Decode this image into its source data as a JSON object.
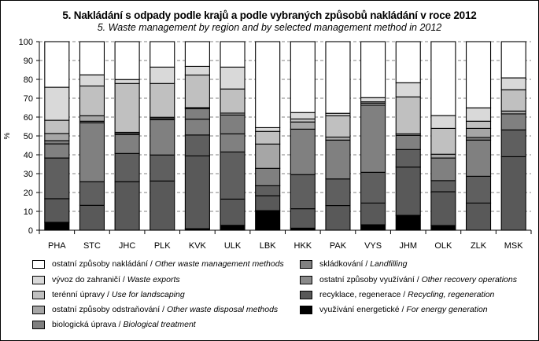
{
  "chart_data": {
    "type": "bar",
    "stacked": true,
    "title": "5. Nakládání  s odpady podle krajů a podle vybraných  způsobů nakládání v roce 2012",
    "subtitle": "5. Waste management  by region and by selected management  method in 2012",
    "xlabel": "",
    "ylabel": "%",
    "ylim": [
      0,
      100
    ],
    "yticks": [
      "0",
      "10",
      "20",
      "30",
      "40",
      "50",
      "60",
      "70",
      "80",
      "90",
      "100"
    ],
    "grid": "horizontal-dashed",
    "legend_position": "bottom",
    "categories": [
      "PHA",
      "STC",
      "JHC",
      "PLK",
      "KVK",
      "ULK",
      "LBK",
      "HKK",
      "PAK",
      "VYS",
      "JHM",
      "OLK",
      "ZLK",
      "MSK"
    ],
    "series": [
      {
        "key": "energy",
        "name_cs": "využívání energetické",
        "name_en": "For energy generation",
        "color": "#000000",
        "values": [
          4.2,
          0,
          0,
          0,
          0.8,
          2.6,
          10.4,
          1.1,
          0,
          2.9,
          7.9,
          2.5,
          0,
          0
        ]
      },
      {
        "key": "recycling",
        "name_cs": "recyklace, regenerace",
        "name_en": "Recycling, regeneration",
        "color": "#595959",
        "values": [
          12.5,
          13.2,
          25.7,
          26.1,
          38.6,
          13.9,
          7.9,
          10.3,
          13.1,
          11.5,
          25.6,
          17.9,
          14.4,
          39.0
        ]
      },
      {
        "key": "other_recovery",
        "name_cs": "ostatní způsoby využívání",
        "name_en": "Other recovery operations",
        "color": "#5f5f5f",
        "values": [
          21.6,
          12.5,
          15.0,
          13.8,
          11.1,
          25.0,
          5.3,
          18.1,
          14.1,
          16.3,
          9.3,
          5.9,
          14.2,
          14.2
        ]
      },
      {
        "key": "landfilling",
        "name_cs": "skládkování",
        "name_en": "Landfilling",
        "color": "#808080",
        "values": [
          7.5,
          31.3,
          10.1,
          18.7,
          8.4,
          9.6,
          9.2,
          24.1,
          20.6,
          35.6,
          7.5,
          12.0,
          19.2,
          8.5
        ]
      },
      {
        "key": "biological",
        "name_cs": "biologická úprava",
        "name_en": "Biological treatment",
        "color": "#7f7f7f",
        "values": [
          1.7,
          0.8,
          0.4,
          0.6,
          5.6,
          10.0,
          0,
          0,
          0,
          0,
          0,
          0,
          1.4,
          0
        ]
      },
      {
        "key": "other_disposal",
        "name_cs": "ostatní způsoby odstraňování",
        "name_en": "Other waste disposal methods",
        "color": "#a6a6a6",
        "values": [
          3.8,
          2.9,
          0.7,
          0.7,
          0.5,
          1.0,
          12.9,
          3.8,
          1.6,
          1.1,
          0.8,
          2.0,
          4.8,
          1.5
        ]
      },
      {
        "key": "landscaping",
        "name_cs": "terénní úpravy",
        "name_en": "Use for landscaping",
        "color": "#c0c0c0",
        "values": [
          7.0,
          15.8,
          25.9,
          17.9,
          17.3,
          12.8,
          6.7,
          1.6,
          11.3,
          0.7,
          19.6,
          13.7,
          3.8,
          11.3
        ]
      },
      {
        "key": "exports",
        "name_cs": "vývoz do zahraničí",
        "name_en": "Waste exports",
        "color": "#d9d9d9",
        "values": [
          17.5,
          5.9,
          2.1,
          8.7,
          4.6,
          11.6,
          2.0,
          3.4,
          1.3,
          2.2,
          7.5,
          6.8,
          7.1,
          6.3
        ]
      },
      {
        "key": "other_methods",
        "name_cs": "ostatní způsoby nakládání",
        "name_en": "Other waste management methods",
        "color": "#ffffff",
        "values": [
          24.2,
          17.6,
          20.1,
          13.5,
          13.1,
          13.5,
          45.6,
          37.6,
          38.0,
          29.7,
          21.8,
          39.2,
          35.1,
          19.2
        ]
      }
    ],
    "legend_order": [
      "other_methods",
      "exports",
      "landscaping",
      "other_disposal",
      "biological",
      "landfilling",
      "other_recovery",
      "recycling",
      "energy"
    ]
  },
  "legend": {
    "separator": " / ",
    "items": [
      {
        "cs": "ostatní způsoby nakládání",
        "en": "Other waste management methods",
        "color": "#ffffff"
      },
      {
        "cs": "vývoz do zahraničí",
        "en": "Waste exports",
        "color": "#d9d9d9"
      },
      {
        "cs": "terénní úpravy",
        "en": "Use for landscaping",
        "color": "#c0c0c0"
      },
      {
        "cs": "ostatní způsoby odstraňování",
        "en": "Other waste disposal methods",
        "color": "#a6a6a6"
      },
      {
        "cs": "biologická úprava",
        "en": "Biological treatment",
        "color": "#7f7f7f"
      },
      {
        "cs": "skládkování",
        "en": "Landfilling",
        "color": "#808080"
      },
      {
        "cs": "ostatní způsoby využívání",
        "en": "Other recovery operations",
        "color": "#8a8a8a"
      },
      {
        "cs": "recyklace, regenerace",
        "en": "Recycling, regeneration",
        "color": "#595959"
      },
      {
        "cs": "využívání energetické",
        "en": "For energy generation",
        "color": "#000000"
      }
    ]
  }
}
